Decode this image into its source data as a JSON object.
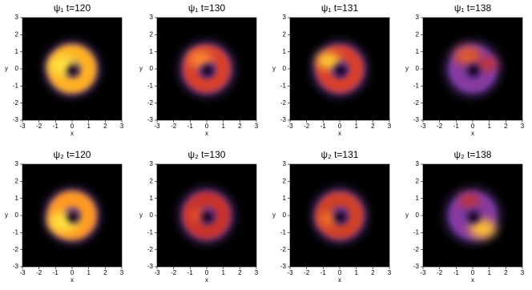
{
  "chart_data": [
    {
      "type": "heatmap",
      "title": "ψ₁  t=120",
      "xlabel": "x",
      "ylabel": "y",
      "xlim": [
        -3,
        3
      ],
      "ylim": [
        -3,
        3
      ],
      "xticks": [
        -3,
        -2,
        -1,
        0,
        1,
        2,
        3
      ],
      "yticks": [
        -3,
        -2,
        -1,
        0,
        1,
        2,
        3
      ]
    },
    {
      "type": "heatmap",
      "title": "ψ₁  t=130",
      "xlabel": "x",
      "ylabel": "y",
      "xlim": [
        -3,
        3
      ],
      "ylim": [
        -3,
        3
      ],
      "xticks": [
        -3,
        -2,
        -1,
        0,
        1,
        2,
        3
      ],
      "yticks": [
        -3,
        -2,
        -1,
        0,
        1,
        2,
        3
      ]
    },
    {
      "type": "heatmap",
      "title": "ψ₁  t=131",
      "xlabel": "x",
      "ylabel": "y",
      "xlim": [
        -3,
        3
      ],
      "ylim": [
        -3,
        3
      ],
      "xticks": [
        -3,
        -2,
        -1,
        0,
        1,
        2,
        3
      ],
      "yticks": [
        -3,
        -2,
        -1,
        0,
        1,
        2,
        3
      ]
    },
    {
      "type": "heatmap",
      "title": "ψ₁  t=138",
      "xlabel": "x",
      "ylabel": "y",
      "xlim": [
        -3,
        3
      ],
      "ylim": [
        -3,
        3
      ],
      "xticks": [
        -3,
        -2,
        -1,
        0,
        1,
        2,
        3
      ],
      "yticks": [
        -3,
        -2,
        -1,
        0,
        1,
        2,
        3
      ]
    },
    {
      "type": "heatmap",
      "title": "ψ₂  t=120",
      "xlabel": "x",
      "ylabel": "y",
      "xlim": [
        -3,
        3
      ],
      "ylim": [
        -3,
        3
      ],
      "xticks": [
        -3,
        -2,
        -1,
        0,
        1,
        2,
        3
      ],
      "yticks": [
        -3,
        -2,
        -1,
        0,
        1,
        2,
        3
      ]
    },
    {
      "type": "heatmap",
      "title": "ψ₂  t=130",
      "xlabel": "x",
      "ylabel": "y",
      "xlim": [
        -3,
        3
      ],
      "ylim": [
        -3,
        3
      ],
      "xticks": [
        -3,
        -2,
        -1,
        0,
        1,
        2,
        3
      ],
      "yticks": [
        -3,
        -2,
        -1,
        0,
        1,
        2,
        3
      ]
    },
    {
      "type": "heatmap",
      "title": "ψ₂  t=131",
      "xlabel": "x",
      "ylabel": "y",
      "xlim": [
        -3,
        3
      ],
      "ylim": [
        -3,
        3
      ],
      "xticks": [
        -3,
        -2,
        -1,
        0,
        1,
        2,
        3
      ],
      "yticks": [
        -3,
        -2,
        -1,
        0,
        1,
        2,
        3
      ]
    },
    {
      "type": "heatmap",
      "title": "ψ₂  t=138",
      "xlabel": "x",
      "ylabel": "y",
      "xlim": [
        -3,
        3
      ],
      "ylim": [
        -3,
        3
      ],
      "xticks": [
        -3,
        -2,
        -1,
        0,
        1,
        2,
        3
      ],
      "yticks": [
        -3,
        -2,
        -1,
        0,
        1,
        2,
        3
      ]
    }
  ]
}
